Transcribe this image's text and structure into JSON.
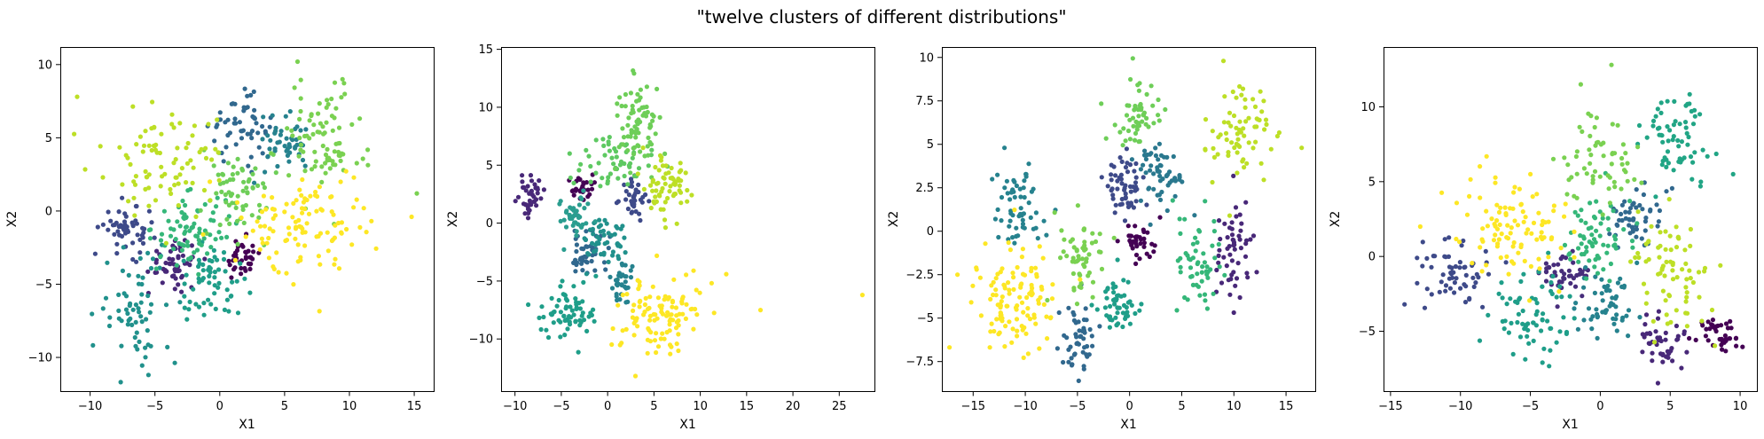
{
  "figure": {
    "title": "\"twelve clusters of different distributions\""
  },
  "chart_data": [
    {
      "type": "scatter",
      "xlabel": "X1",
      "ylabel": "X2",
      "xlim": [
        -12.3,
        16.5
      ],
      "ylim": [
        -12.3,
        11.2
      ],
      "xticks": [
        -10,
        -5,
        0,
        5,
        10,
        15
      ],
      "yticks": [
        -10,
        -5,
        0,
        5,
        10
      ],
      "clusters": [
        {
          "color": "#440154",
          "center": [
            1.7,
            -3.3
          ],
          "spread": [
            0.7,
            0.7
          ],
          "n": 38
        },
        {
          "color": "#482878",
          "center": [
            -3.5,
            -3.4
          ],
          "spread": [
            1.0,
            0.8
          ],
          "n": 55
        },
        {
          "color": "#3e4a89",
          "center": [
            -7.0,
            -1.3
          ],
          "spread": [
            1.0,
            0.8
          ],
          "n": 55
        },
        {
          "color": "#31688e",
          "center": [
            1.5,
            5.8
          ],
          "spread": [
            1.1,
            1.0
          ],
          "n": 55
        },
        {
          "color": "#26828e",
          "center": [
            5.0,
            4.5
          ],
          "spread": [
            1.2,
            0.9
          ],
          "n": 50
        },
        {
          "color": "#1f9e89",
          "center": [
            -0.5,
            -5.0
          ],
          "spread": [
            1.3,
            1.3
          ],
          "n": 60
        },
        {
          "color": "#21918c",
          "center": [
            -6.3,
            -6.5
          ],
          "spread": [
            1.5,
            2.0
          ],
          "n": 65
        },
        {
          "color": "#35b779",
          "center": [
            -2.3,
            -1.2
          ],
          "spread": [
            1.4,
            1.2
          ],
          "n": 75
        },
        {
          "color": "#6ece58",
          "center": [
            1.3,
            1.2
          ],
          "spread": [
            1.3,
            1.6
          ],
          "n": 65
        },
        {
          "color": "#7ad151",
          "center": [
            8.0,
            5.0
          ],
          "spread": [
            1.6,
            2.0
          ],
          "n": 85
        },
        {
          "color": "#bddf26",
          "center": [
            -4.2,
            3.5
          ],
          "spread": [
            2.4,
            1.9
          ],
          "n": 85
        },
        {
          "color": "#fde725",
          "center": [
            7.0,
            -0.8
          ],
          "spread": [
            2.6,
            1.8
          ],
          "n": 110
        }
      ],
      "outliers": [
        [
          15.2,
          1.2
        ],
        [
          14.8,
          -0.4
        ],
        [
          -11.0,
          7.8
        ],
        [
          6.0,
          10.2
        ],
        [
          -5.5,
          -11.2
        ]
      ]
    },
    {
      "type": "scatter",
      "xlabel": "X1",
      "ylabel": "X2",
      "xlim": [
        -11.5,
        28.8
      ],
      "ylim": [
        -14.5,
        15.2
      ],
      "xticks": [
        -10,
        -5,
        0,
        5,
        10,
        15,
        20,
        25
      ],
      "yticks": [
        -10,
        -5,
        0,
        5,
        10,
        15
      ],
      "clusters": [
        {
          "color": "#440154",
          "center": [
            -2.8,
            3.2
          ],
          "spread": [
            0.6,
            0.6
          ],
          "n": 30
        },
        {
          "color": "#482878",
          "center": [
            -8.2,
            2.3
          ],
          "spread": [
            0.6,
            0.8
          ],
          "n": 40
        },
        {
          "color": "#3e4a89",
          "center": [
            2.8,
            2.3
          ],
          "spread": [
            0.7,
            0.9
          ],
          "n": 35
        },
        {
          "color": "#31688e",
          "center": [
            -2.2,
            -2.5
          ],
          "spread": [
            1.0,
            1.0
          ],
          "n": 45
        },
        {
          "color": "#26828e",
          "center": [
            1.5,
            -5.2
          ],
          "spread": [
            0.6,
            1.0
          ],
          "n": 35
        },
        {
          "color": "#1f9e89",
          "center": [
            -4.5,
            -7.5
          ],
          "spread": [
            1.6,
            1.2
          ],
          "n": 70
        },
        {
          "color": "#21918c",
          "center": [
            -0.5,
            -1.2
          ],
          "spread": [
            1.2,
            1.3
          ],
          "n": 50
        },
        {
          "color": "#2a9d8f",
          "center": [
            -3.5,
            0.5
          ],
          "spread": [
            1.0,
            1.0
          ],
          "n": 40
        },
        {
          "color": "#5ec962",
          "center": [
            0.8,
            5.3
          ],
          "spread": [
            1.8,
            1.2
          ],
          "n": 55
        },
        {
          "color": "#6ece58",
          "center": [
            3.5,
            8.5
          ],
          "spread": [
            1.3,
            1.8
          ],
          "n": 75
        },
        {
          "color": "#bddf26",
          "center": [
            6.5,
            3.2
          ],
          "spread": [
            1.3,
            1.6
          ],
          "n": 65
        },
        {
          "color": "#fde725",
          "center": [
            5.5,
            -8.0
          ],
          "spread": [
            2.2,
            1.6
          ],
          "n": 110
        }
      ],
      "outliers": [
        [
          27.5,
          -6.2
        ],
        [
          16.5,
          -7.5
        ],
        [
          12.8,
          -4.4
        ],
        [
          3.0,
          -13.2
        ]
      ]
    },
    {
      "type": "scatter",
      "xlabel": "X1",
      "ylabel": "X2",
      "xlim": [
        -18.0,
        17.8
      ],
      "ylim": [
        -9.2,
        10.6
      ],
      "xticks": [
        -15,
        -10,
        -5,
        0,
        5,
        10,
        15
      ],
      "yticks": [
        -7.5,
        -5.0,
        -2.5,
        0.0,
        2.5,
        5.0,
        7.5,
        10.0
      ],
      "clusters": [
        {
          "color": "#440154",
          "center": [
            1.0,
            -0.6
          ],
          "spread": [
            0.8,
            0.6
          ],
          "n": 35
        },
        {
          "color": "#482878",
          "center": [
            10.0,
            -1.0
          ],
          "spread": [
            1.1,
            1.4
          ],
          "n": 55
        },
        {
          "color": "#3e4a89",
          "center": [
            -0.5,
            2.5
          ],
          "spread": [
            1.0,
            1.0
          ],
          "n": 55
        },
        {
          "color": "#31688e",
          "center": [
            -5.0,
            -6.0
          ],
          "spread": [
            0.9,
            1.1
          ],
          "n": 50
        },
        {
          "color": "#26828e",
          "center": [
            -10.5,
            1.2
          ],
          "spread": [
            1.2,
            1.2
          ],
          "n": 60
        },
        {
          "color": "#2a788e",
          "center": [
            3.0,
            3.3
          ],
          "spread": [
            1.0,
            1.0
          ],
          "n": 55
        },
        {
          "color": "#1f9e89",
          "center": [
            -1.0,
            -4.5
          ],
          "spread": [
            1.0,
            0.9
          ],
          "n": 55
        },
        {
          "color": "#35b779",
          "center": [
            6.5,
            -2.0
          ],
          "spread": [
            1.2,
            1.4
          ],
          "n": 55
        },
        {
          "color": "#6ece58",
          "center": [
            0.5,
            6.3
          ],
          "spread": [
            1.1,
            1.3
          ],
          "n": 55
        },
        {
          "color": "#7ad151",
          "center": [
            -4.5,
            -1.2
          ],
          "spread": [
            1.2,
            1.3
          ],
          "n": 55
        },
        {
          "color": "#bddf26",
          "center": [
            10.5,
            5.5
          ],
          "spread": [
            1.6,
            1.4
          ],
          "n": 70
        },
        {
          "color": "#fde725",
          "center": [
            -10.5,
            -3.8
          ],
          "spread": [
            2.0,
            1.5
          ],
          "n": 115
        }
      ],
      "outliers": [
        [
          16.5,
          4.8
        ],
        [
          -16.5,
          -2.5
        ],
        [
          -12.0,
          4.8
        ],
        [
          9.0,
          9.8
        ]
      ]
    },
    {
      "type": "scatter",
      "xlabel": "X1",
      "ylabel": "X2",
      "xlim": [
        -15.5,
        11.2
      ],
      "ylim": [
        -9.0,
        14.0
      ],
      "xticks": [
        -15,
        -10,
        -5,
        0,
        5,
        10
      ],
      "yticks": [
        -5,
        0,
        5,
        10
      ],
      "clusters": [
        {
          "color": "#440154",
          "center": [
            8.5,
            -5.2
          ],
          "spread": [
            0.8,
            0.6
          ],
          "n": 40
        },
        {
          "color": "#482878",
          "center": [
            4.3,
            -5.8
          ],
          "spread": [
            0.7,
            1.1
          ],
          "n": 45
        },
        {
          "color": "#472d7b",
          "center": [
            -2.5,
            -1.2
          ],
          "spread": [
            1.0,
            0.8
          ],
          "n": 45
        },
        {
          "color": "#31688e",
          "center": [
            2.5,
            2.5
          ],
          "spread": [
            0.9,
            1.1
          ],
          "n": 50
        },
        {
          "color": "#3e4a89",
          "center": [
            -10.5,
            -1.0
          ],
          "spread": [
            1.4,
            1.2
          ],
          "n": 60
        },
        {
          "color": "#26828e",
          "center": [
            0.5,
            -3.2
          ],
          "spread": [
            1.0,
            1.0
          ],
          "n": 55
        },
        {
          "color": "#1f9e89",
          "center": [
            -5.0,
            -3.8
          ],
          "spread": [
            1.4,
            1.4
          ],
          "n": 70
        },
        {
          "color": "#21a585",
          "center": [
            5.5,
            8.0
          ],
          "spread": [
            1.2,
            1.5
          ],
          "n": 65
        },
        {
          "color": "#35b779",
          "center": [
            -0.5,
            1.5
          ],
          "spread": [
            1.4,
            1.4
          ],
          "n": 65
        },
        {
          "color": "#7ad151",
          "center": [
            0.0,
            6.5
          ],
          "spread": [
            1.5,
            1.8
          ],
          "n": 60
        },
        {
          "color": "#bddf26",
          "center": [
            5.0,
            -1.0
          ],
          "spread": [
            1.3,
            2.1
          ],
          "n": 75
        },
        {
          "color": "#fde725",
          "center": [
            -6.5,
            2.2
          ],
          "spread": [
            2.0,
            1.8
          ],
          "n": 100
        }
      ],
      "outliers": [
        [
          -14.0,
          -3.2
        ],
        [
          9.5,
          5.5
        ],
        [
          0.8,
          12.8
        ],
        [
          -5.0,
          5.5
        ]
      ]
    }
  ]
}
